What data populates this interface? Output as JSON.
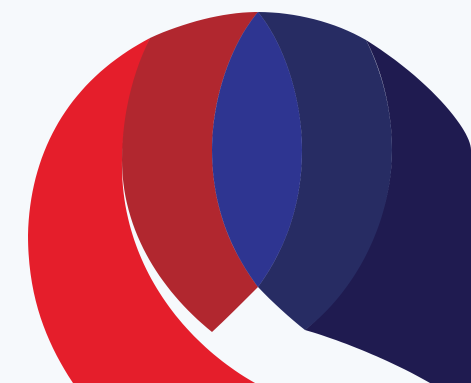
{
  "graphic": {
    "name": "interlocking-circles-logo",
    "colors": {
      "background": "#f6f9fc",
      "left_red": "#e51e2b",
      "center_left_red": "#b1272f",
      "center_blue": "#2e3591",
      "center_right_navy": "#272c63",
      "right_navy": "#1f1b50"
    }
  }
}
